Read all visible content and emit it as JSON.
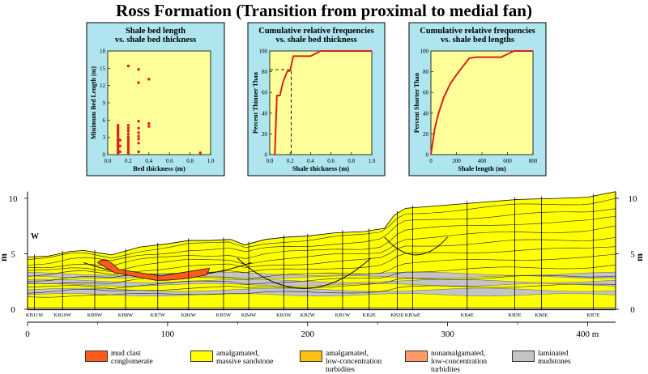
{
  "title": "Ross Formation (Transition from proximal to medial fan)",
  "colors": {
    "panel_bg": "#aee5ef",
    "plot_bg": "#ffff99",
    "series": "#dd1f1f",
    "sandstone": "#ffff00",
    "mud_clast": "#ff5a1e",
    "mudstone": "#c4c4c4"
  },
  "chart_data": [
    {
      "type": "scatter",
      "title": "Shale bed length vs. shale bed thickness",
      "title_lines": [
        "Shale bed length",
        "vs. shale bed  thickness"
      ],
      "xlabel": "Bed thickness (m)",
      "ylabel": "Minimum Bed Length (m)",
      "xlim": [
        0,
        1
      ],
      "ylim": [
        0,
        18
      ],
      "xticks": [
        "0.0",
        "0.2",
        "0.4",
        "0.6",
        "0.8",
        "1.0"
      ],
      "yticks": [
        "0",
        "3",
        "6",
        "9",
        "12",
        "15",
        "18"
      ],
      "points": [
        [
          0.1,
          0.3
        ],
        [
          0.1,
          0.6
        ],
        [
          0.1,
          0.9
        ],
        [
          0.1,
          1.2
        ],
        [
          0.1,
          1.5
        ],
        [
          0.1,
          1.8
        ],
        [
          0.1,
          2.1
        ],
        [
          0.1,
          2.4
        ],
        [
          0.1,
          2.7
        ],
        [
          0.1,
          3.0
        ],
        [
          0.1,
          3.3
        ],
        [
          0.1,
          3.6
        ],
        [
          0.1,
          3.9
        ],
        [
          0.1,
          4.2
        ],
        [
          0.1,
          4.5
        ],
        [
          0.1,
          4.8
        ],
        [
          0.1,
          5.1
        ],
        [
          0.12,
          0.5
        ],
        [
          0.12,
          1.5
        ],
        [
          0.12,
          2.5
        ],
        [
          0.2,
          0.3
        ],
        [
          0.2,
          0.7
        ],
        [
          0.2,
          1.1
        ],
        [
          0.2,
          1.5
        ],
        [
          0.2,
          1.9
        ],
        [
          0.2,
          2.3
        ],
        [
          0.2,
          2.7
        ],
        [
          0.2,
          3.1
        ],
        [
          0.2,
          3.6
        ],
        [
          0.2,
          4.1
        ],
        [
          0.2,
          4.6
        ],
        [
          0.2,
          5.1
        ],
        [
          0.2,
          15.4
        ],
        [
          0.3,
          0.5
        ],
        [
          0.3,
          2.0
        ],
        [
          0.3,
          2.7
        ],
        [
          0.3,
          3.2
        ],
        [
          0.3,
          3.8
        ],
        [
          0.3,
          4.6
        ],
        [
          0.3,
          5.8
        ],
        [
          0.3,
          12.5
        ],
        [
          0.3,
          14.8
        ],
        [
          0.4,
          4.9
        ],
        [
          0.4,
          5.4
        ],
        [
          0.4,
          13.1
        ],
        [
          0.9,
          0.3
        ]
      ]
    },
    {
      "type": "line",
      "title": "Cumulative relative frequencies vs. shale bed thickness",
      "title_lines": [
        "Cumulative relative frequencies",
        "vs. shale bed thickness"
      ],
      "xlabel": "Shale thickness (m)",
      "ylabel": "Percent Thinner Than",
      "xlim": [
        0,
        1
      ],
      "ylim": [
        0,
        100
      ],
      "xticks": [
        "0.0",
        "0.2",
        "0.4",
        "0.6",
        "0.8",
        "1.0"
      ],
      "yticks": [
        "0",
        "20",
        "40",
        "60",
        "80",
        "100"
      ],
      "x": [
        0.05,
        0.07,
        0.1,
        0.13,
        0.17,
        0.2,
        0.23,
        0.3,
        0.4,
        0.5,
        0.8,
        1.0
      ],
      "y": [
        0,
        57,
        57,
        70,
        80,
        81,
        95,
        95,
        95,
        100,
        100,
        100
      ],
      "reference_line": {
        "x": 0.21,
        "y": 82
      }
    },
    {
      "type": "line",
      "title": "Cumulative relative frequencies vs. shale bed lengths",
      "title_lines": [
        "Cumulative relative frequencies",
        "vs. shale bed lengths"
      ],
      "xlabel": "Shale length (m)",
      "ylabel": "Percent Shorter Than",
      "xlim": [
        0,
        800
      ],
      "ylim": [
        0,
        100
      ],
      "xticks": [
        "0",
        "200",
        "400",
        "600",
        "800"
      ],
      "yticks": [
        "0",
        "20",
        "40",
        "60",
        "80",
        "100"
      ],
      "x": [
        0,
        30,
        60,
        100,
        150,
        200,
        250,
        300,
        350,
        400,
        450,
        550,
        600,
        650,
        700,
        800
      ],
      "y": [
        0,
        25,
        40,
        55,
        68,
        77,
        85,
        93,
        94,
        94,
        94,
        94,
        97,
        100,
        100,
        100
      ]
    },
    {
      "type": "cross-section",
      "xlabel": "m",
      "ylabel": "m",
      "xlim": [
        0,
        420
      ],
      "ylim": [
        0,
        10
      ],
      "xticks": [
        "0",
        "100",
        "200",
        "300",
        "400 m"
      ],
      "yticks": [
        "0",
        "5",
        "10"
      ],
      "direction_label": "W",
      "wells": [
        {
          "name": "KB11W",
          "x": 5
        },
        {
          "name": "KB10W",
          "x": 25
        },
        {
          "name": "KB9W",
          "x": 48
        },
        {
          "name": "KB8W",
          "x": 70
        },
        {
          "name": "KB7W",
          "x": 93
        },
        {
          "name": "KB6W",
          "x": 115
        },
        {
          "name": "KB5W",
          "x": 140
        },
        {
          "name": "KB4W",
          "x": 158
        },
        {
          "name": "KB3W",
          "x": 183
        },
        {
          "name": "KB2W",
          "x": 200
        },
        {
          "name": "KB1W",
          "x": 225
        },
        {
          "name": "KB2E",
          "x": 244
        },
        {
          "name": "KB3E",
          "x": 264
        },
        {
          "name": "KB3aE",
          "x": 275
        },
        {
          "name": "KB4E",
          "x": 314
        },
        {
          "name": "KB5E",
          "x": 348
        },
        {
          "name": "KB6E",
          "x": 367
        },
        {
          "name": "KB7E",
          "x": 404
        }
      ],
      "top_surface": [
        [
          0,
          4.7
        ],
        [
          15,
          4.8
        ],
        [
          30,
          5.2
        ],
        [
          40,
          5.3
        ],
        [
          60,
          4.9
        ],
        [
          80,
          5.6
        ],
        [
          100,
          5.9
        ],
        [
          115,
          6.2
        ],
        [
          130,
          6.2
        ],
        [
          145,
          6.3
        ],
        [
          155,
          5.8
        ],
        [
          170,
          6.3
        ],
        [
          185,
          6.5
        ],
        [
          200,
          6.6
        ],
        [
          220,
          6.9
        ],
        [
          240,
          7.0
        ],
        [
          255,
          7.3
        ],
        [
          262,
          8.5
        ],
        [
          270,
          9.1
        ],
        [
          290,
          9.3
        ],
        [
          320,
          9.6
        ],
        [
          350,
          9.9
        ],
        [
          380,
          10.0
        ],
        [
          400,
          10.1
        ],
        [
          420,
          10.6
        ]
      ]
    }
  ],
  "legend": [
    {
      "label_lines": [
        "mud clast",
        "conglomerate"
      ],
      "color": "#ff5a1e"
    },
    {
      "label_lines": [
        "amalgamated,",
        "massive sandstone"
      ],
      "color": "#ffff00"
    },
    {
      "label_lines": [
        "amalgamated,",
        "low-concentration",
        "turbidites"
      ],
      "color": "#ffc010"
    },
    {
      "label_lines": [
        "nonamalgamated,",
        "low-concentration",
        "turbidites"
      ],
      "color": "#ff9966"
    },
    {
      "label_lines": [
        "laminated",
        "mudstones"
      ],
      "color": "#c4c4c4"
    }
  ]
}
